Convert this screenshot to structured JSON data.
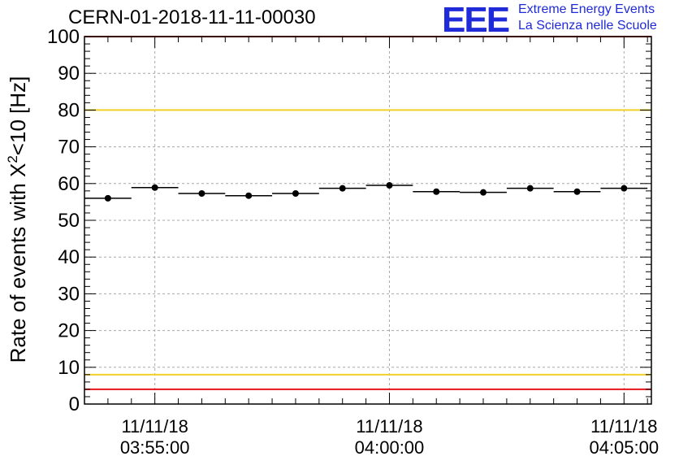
{
  "header": {
    "title": "CERN-01-2018-11-11-00030",
    "logo_text": "EEE",
    "logo_line1": "Extreme Energy Events",
    "logo_line2": "La Scienza nelle Scuole"
  },
  "colors": {
    "axis": "#000000",
    "grid": "#a8a8a8",
    "red_limit": "#e8141c",
    "yellow_limit": "#f2d02a",
    "points": "#000000",
    "logo": "#1f2bd8"
  },
  "chart_data": {
    "type": "scatter",
    "title": "CERN-01-2018-11-11-00030",
    "ylabel_pre": "Rate of events with X",
    "ylabel_sup": "2",
    "ylabel_post": "<10 [Hz]",
    "xlabel": "",
    "ylim": [
      0,
      100
    ],
    "yticks": [
      0,
      10,
      20,
      30,
      40,
      50,
      60,
      70,
      80,
      90,
      100
    ],
    "xlim": [
      "03:53:30",
      "04:05:35"
    ],
    "xticks": [
      {
        "time": "03:55:00",
        "date": "11/11/18",
        "clock": "03:55:00"
      },
      {
        "time": "04:00:00",
        "date": "11/11/18",
        "clock": "04:00:00"
      },
      {
        "time": "04:05:00",
        "date": "11/11/18",
        "clock": "04:05:00"
      }
    ],
    "grid": true,
    "limits": [
      {
        "value": 100,
        "color": "red"
      },
      {
        "value": 80,
        "color": "yellow"
      },
      {
        "value": 8,
        "color": "yellow"
      },
      {
        "value": 4,
        "color": "red"
      }
    ],
    "bin_width_seconds": 60,
    "points": [
      {
        "time": "03:54:00",
        "y": 56.0
      },
      {
        "time": "03:55:00",
        "y": 58.9
      },
      {
        "time": "03:56:00",
        "y": 57.3
      },
      {
        "time": "03:57:00",
        "y": 56.7
      },
      {
        "time": "03:58:00",
        "y": 57.3
      },
      {
        "time": "03:59:00",
        "y": 58.7
      },
      {
        "time": "04:00:00",
        "y": 59.5
      },
      {
        "time": "04:01:00",
        "y": 57.8
      },
      {
        "time": "04:02:00",
        "y": 57.6
      },
      {
        "time": "04:03:00",
        "y": 58.7
      },
      {
        "time": "04:04:00",
        "y": 57.8
      },
      {
        "time": "04:05:00",
        "y": 58.7
      }
    ]
  }
}
